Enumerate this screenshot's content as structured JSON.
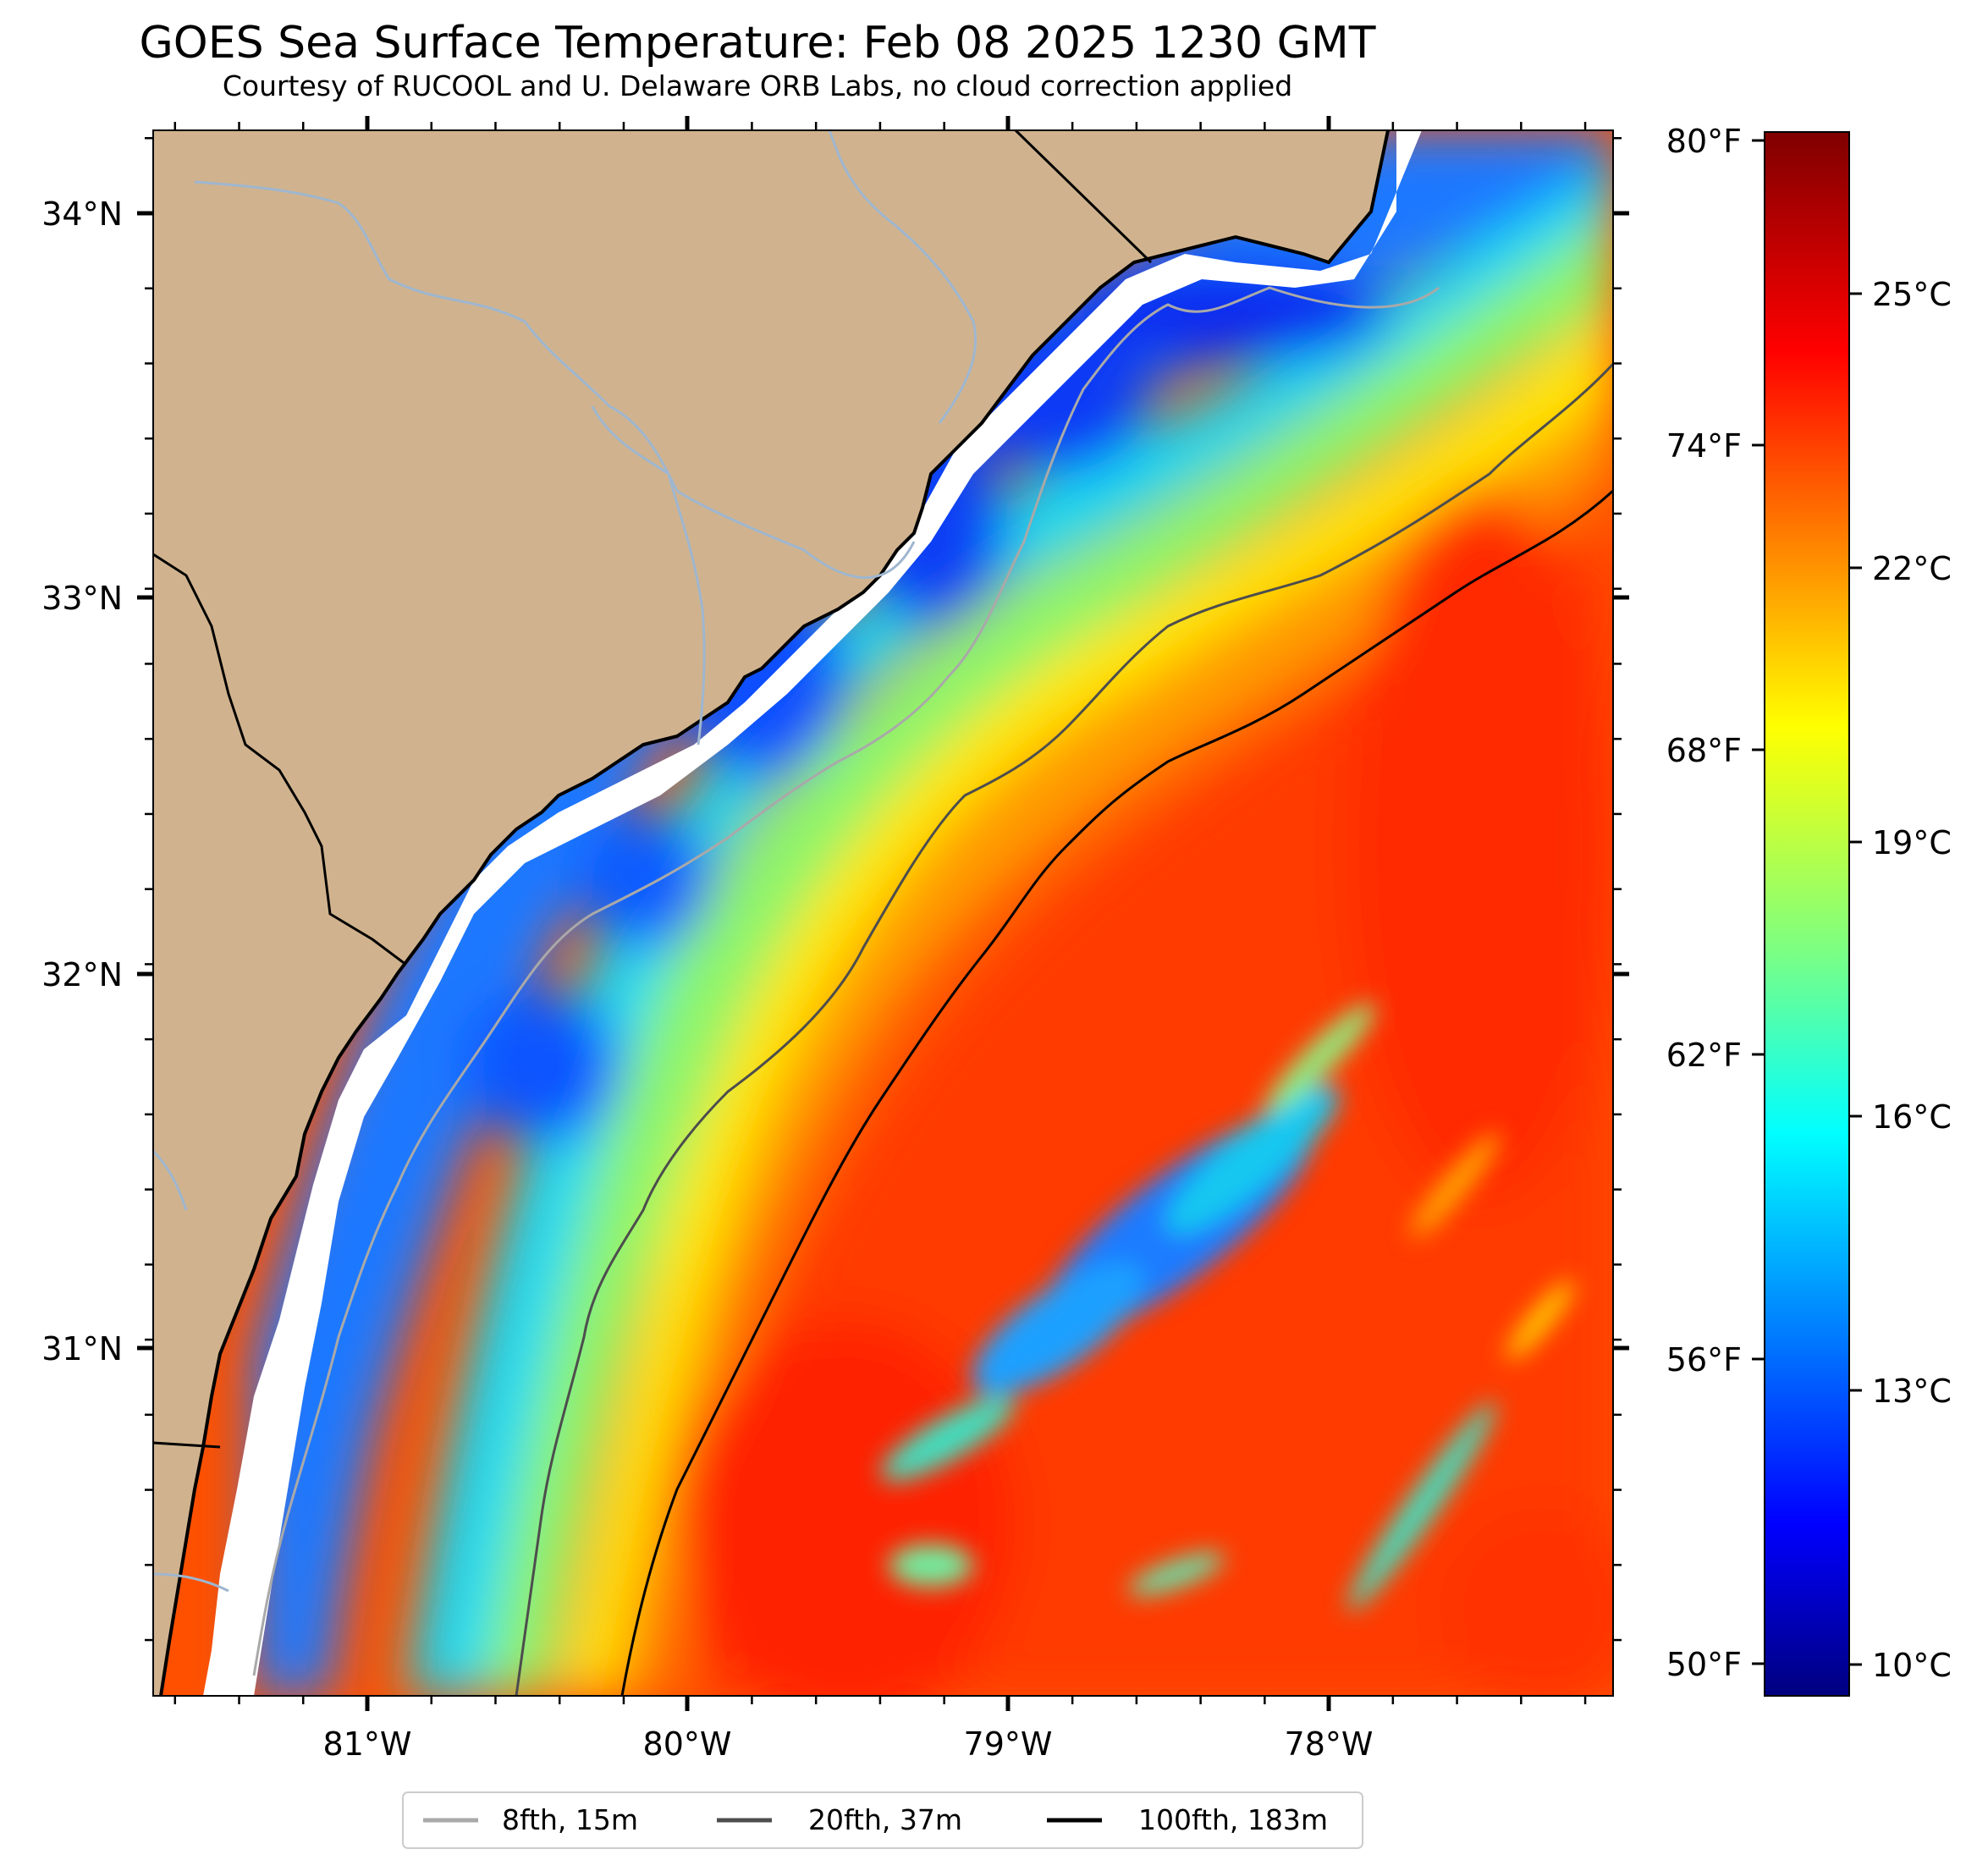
{
  "title": "GOES Sea Surface Temperature: Feb 08 2025 1230 GMT",
  "subtitle": "Courtesy of RUCOOL and U. Delaware ORB Labs, no cloud correction applied",
  "map": {
    "lon_range": [
      -81.67,
      -77.12
    ],
    "lat_range": [
      30.1,
      34.22
    ],
    "longitude_labels": [
      "81°W",
      "80°W",
      "79°W",
      "78°W"
    ],
    "latitude_labels": [
      "34°N",
      "33°N",
      "32°N",
      "31°N"
    ],
    "land_color": "#d0b38e",
    "river_color": "#9fb6cf"
  },
  "colorbar": {
    "range_celsius": [
      9.5,
      27.4
    ],
    "fahrenheit_labels": [
      "80°F",
      "74°F",
      "68°F",
      "62°F",
      "56°F",
      "50°F"
    ],
    "celsius_labels": [
      "25°C",
      "22°C",
      "19°C",
      "16°C",
      "13°C",
      "10°C"
    ],
    "colormap": "jet"
  },
  "legend": [
    {
      "label": "8fth, 15m",
      "color": "#a9a9a9"
    },
    {
      "label": "20fth, 37m",
      "color": "#4d4d4d"
    },
    {
      "label": "100fth, 183m",
      "color": "#000000"
    }
  ]
}
